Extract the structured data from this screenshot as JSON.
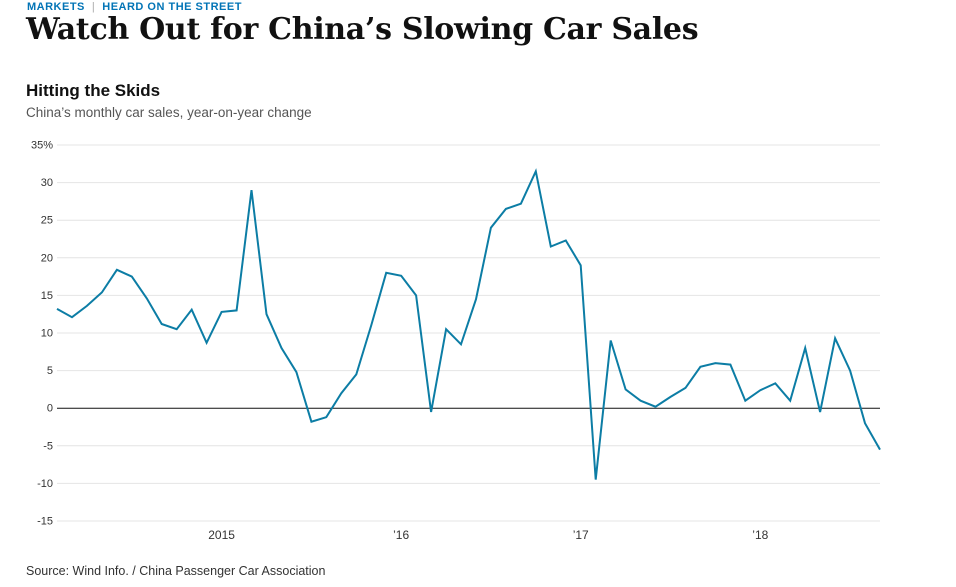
{
  "eyebrow": {
    "section": "MARKETS",
    "separator": "|",
    "subsection": "HEARD ON THE STREET"
  },
  "headline": "Watch Out for China’s Slowing Car Sales",
  "colors": {
    "link_blue": "#0274b6",
    "line": "#0c7da5",
    "grid": "#e4e4e4",
    "zero_line": "#111111",
    "subtitle_gray": "#555555"
  },
  "chart_data": {
    "type": "line",
    "title": "Hitting the Skids",
    "subtitle": "China’s monthly car sales, year-on-year change",
    "source": "Source: Wind Info. / China Passenger Car Association",
    "unit": "%",
    "legend": "none",
    "grid": "horizontal",
    "x": [
      "2014-02",
      "2014-03",
      "2014-04",
      "2014-05",
      "2014-06",
      "2014-07",
      "2014-08",
      "2014-09",
      "2014-10",
      "2014-11",
      "2014-12",
      "2015-01",
      "2015-02",
      "2015-03",
      "2015-04",
      "2015-05",
      "2015-06",
      "2015-07",
      "2015-08",
      "2015-09",
      "2015-10",
      "2015-11",
      "2015-12",
      "2016-01",
      "2016-02",
      "2016-03",
      "2016-04",
      "2016-05",
      "2016-06",
      "2016-07",
      "2016-08",
      "2016-09",
      "2016-10",
      "2016-11",
      "2016-12",
      "2017-01",
      "2017-02",
      "2017-03",
      "2017-04",
      "2017-05",
      "2017-06",
      "2017-07",
      "2017-08",
      "2017-09",
      "2017-10",
      "2017-11",
      "2017-12",
      "2018-01",
      "2018-02",
      "2018-03",
      "2018-04",
      "2018-05",
      "2018-06",
      "2018-07",
      "2018-08",
      "2018-09"
    ],
    "values": [
      13.2,
      12.1,
      13.6,
      15.4,
      18.4,
      17.5,
      14.6,
      11.2,
      10.5,
      13.1,
      8.7,
      12.8,
      13.0,
      29.0,
      12.5,
      8.0,
      4.8,
      -1.8,
      -1.2,
      2.0,
      4.5,
      11.0,
      18.0,
      17.6,
      15.0,
      -0.5,
      10.5,
      8.5,
      14.5,
      24.0,
      26.5,
      27.2,
      31.5,
      21.5,
      22.3,
      19.0,
      -9.5,
      9.0,
      2.5,
      1.0,
      0.2,
      1.5,
      2.7,
      5.5,
      6.0,
      5.8,
      1.0,
      2.4,
      3.3,
      1.0,
      8.0,
      -0.5,
      9.3,
      5.0,
      -2.0,
      -5.5
    ],
    "ylim": [
      -15,
      35
    ],
    "y_ticks": [
      35,
      30,
      25,
      20,
      15,
      10,
      5,
      0,
      -5,
      -10,
      -15
    ],
    "y_tick_labels": [
      "35%",
      "30",
      "25",
      "20",
      "15",
      "10",
      "5",
      "0",
      "-5",
      "-10",
      "-15"
    ],
    "x_tick_labels": [
      "2015",
      "’16",
      "’17",
      "’18"
    ],
    "x_tick_indices": [
      11,
      23,
      35,
      47
    ]
  }
}
